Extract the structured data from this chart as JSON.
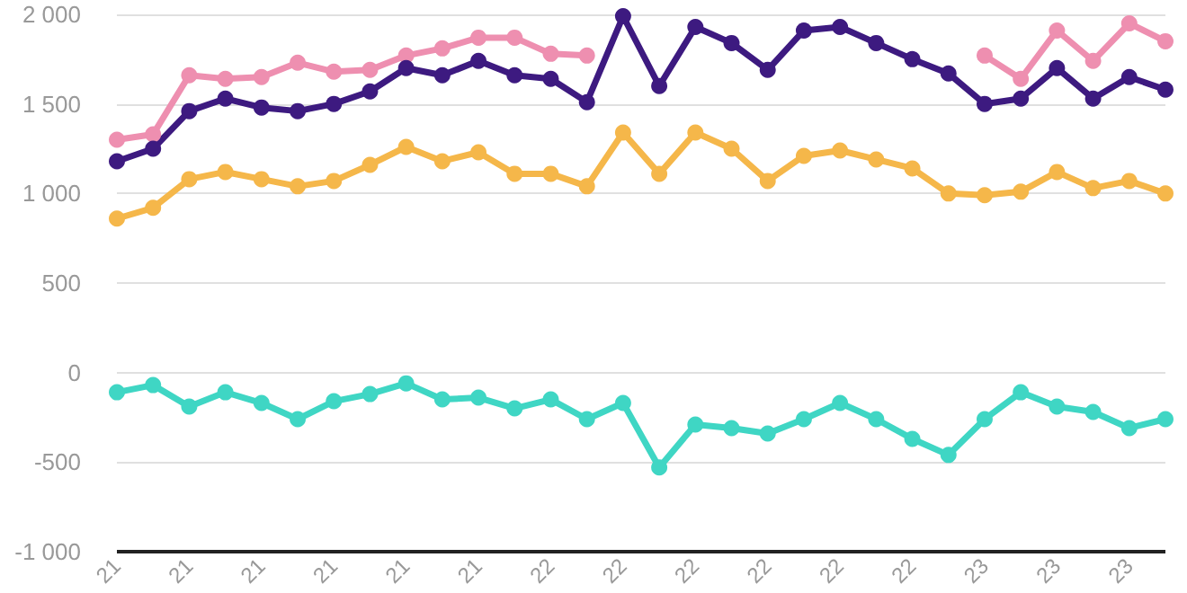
{
  "chart_data": {
    "type": "line",
    "categories": [
      "21",
      null,
      "21",
      null,
      "21",
      null,
      "21",
      null,
      "21",
      null,
      "21",
      null,
      "22",
      null,
      "22",
      null,
      "22",
      null,
      "22",
      null,
      "22",
      null,
      "22",
      null,
      "23",
      null,
      "23",
      null,
      "23",
      null
    ],
    "series": [
      {
        "color": "#ee8fb0",
        "values": [
          1300,
          1330,
          1660,
          1640,
          1650,
          1730,
          1680,
          1690,
          1770,
          1810,
          1870,
          1870,
          1780,
          1770,
          null,
          null,
          null,
          null,
          null,
          null,
          null,
          null,
          null,
          null,
          1770,
          1640,
          1910,
          1740,
          1950,
          1850
        ]
      },
      {
        "color": "#3d1a80",
        "values": [
          1180,
          1250,
          1460,
          1530,
          1480,
          1460,
          1500,
          1570,
          1700,
          1660,
          1740,
          1660,
          1640,
          1510,
          1990,
          1600,
          1930,
          1840,
          1690,
          1910,
          1930,
          1840,
          1750,
          1670,
          1500,
          1530,
          1700,
          1530,
          1650,
          1580
        ]
      },
      {
        "color": "#f5b74a",
        "values": [
          860,
          920,
          1080,
          1120,
          1080,
          1040,
          1070,
          1160,
          1260,
          1180,
          1230,
          1110,
          1110,
          1040,
          1340,
          1110,
          1340,
          1250,
          1070,
          1210,
          1240,
          1190,
          1140,
          1000,
          990,
          1010,
          1120,
          1030,
          1070,
          1000
        ]
      },
      {
        "color": "#3fd6c4",
        "values": [
          -110,
          -70,
          -190,
          -110,
          -170,
          -260,
          -160,
          -120,
          -60,
          -150,
          -140,
          -200,
          -150,
          -260,
          -170,
          -530,
          -290,
          -310,
          -340,
          -260,
          -170,
          -260,
          -370,
          -460,
          -260,
          -110,
          -190,
          -220,
          -310,
          -260
        ]
      }
    ],
    "ylim": [
      -1000,
      2000
    ],
    "yticks": [
      {
        "value": -1000,
        "label": "-1 000"
      },
      -500,
      0,
      500,
      {
        "value": 1000,
        "label": "1 000"
      },
      {
        "value": 1500,
        "label": "1 500"
      },
      {
        "value": 2000,
        "label": "2 000"
      }
    ],
    "grid": "y",
    "marker": "circle",
    "line_style": "solid"
  }
}
